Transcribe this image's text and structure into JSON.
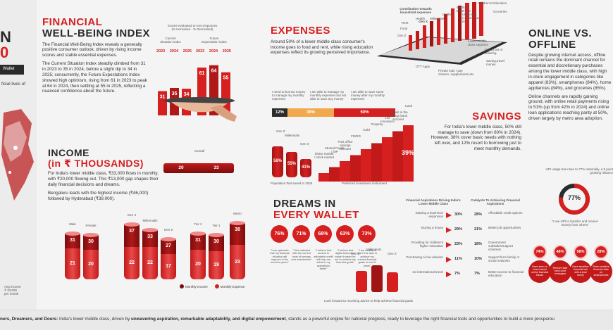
{
  "left_cut": {
    "title_fragment_1": "N",
    "title_fragment_2": "0",
    "wallet": "Wallet",
    "text_fragment": "ficial lives of",
    "avg_note": "Avg Income\n₹ 33,000\nper month"
  },
  "wellbeing": {
    "title_line1": "FINANCIAL",
    "title_line2": "WELL-BEING INDEX",
    "para1": "The Financial Well-Being Index reveals a generally positive consumer outlook, driven by rising income scores and stable essential expenses.",
    "para2": "The Current Situation Index steadily climbed from 31 in 2023 to 35 in 2024, before a slight dip to 34 in 2025; concurrently, the Future Expectations Index showed high optimism, rising from 61 in 2023 to peak at 64 in 2024, then settling at 55 in 2025, reflecting a nuanced confidence about the future.",
    "chart_note": "Scores evaluated on net responses\n(% Increased - % Decreased)",
    "current_label": "Current\nSituation index",
    "future_label": "Future\nExpectation index",
    "years": [
      "2023",
      "2024",
      "2025"
    ]
  },
  "income": {
    "title_line1": "INCOME",
    "title_line2": "(in ₹ THOUSANDS)",
    "para1": "For India's lower middle class, ₹33,000 flows in monthly, with ₹20,000 flowing out. This ₹13,000 gap shapes their daily financial decisions and dreams.",
    "para2": "Bengaluru leads with the highest income (₹46,000) followed by Hyderabad (₹39,000).",
    "overall_label": "Overall",
    "overall_income": "33",
    "overall_expense": "20",
    "legend_income": "Monthly Income",
    "legend_expense": "Monthly Expense"
  },
  "expenses": {
    "title": "EXPENSES",
    "para": "Around 50% of a lower middle class consumer's income goes to food and rent, while rising education expenses reflect its growing perceived importance.",
    "top_note": "Contribution towards\nhousehold expenses",
    "labels": [
      "Food",
      "Rent",
      "Health",
      "Medical\nExpenses",
      "Clothes",
      "Utility Bills\n(cooking fuel,\netc.)",
      "Children's Education",
      "Groceries",
      "Lower middle\nclass segment",
      "Eating out or\nordering",
      "Saving,travel\nmoney",
      "Private loan / pay\nclasses, supplements etc.",
      "OTT Apps",
      "Gen X",
      "Millennials",
      "Gen Z"
    ]
  },
  "savings_survey": {
    "q1": "I need to borrow money to manage my monthly expenses",
    "q2": "I am able to manage my monthly expenses but not able to save any money",
    "q3": "I am able to save some money after my monthly expenses",
    "p1": "12%",
    "p2": "38%",
    "p3": "50%"
  },
  "savings": {
    "title": "SAVINGS",
    "para": "For India's lower middle class, 50% still manage to save (down from 60% in 2024). However, 38% cover basic needs with nothing left over, and 12% resort to borrowing just to meet monthly demands.",
    "pop_note": "Population that saved in 2025",
    "instr_note": "Preferred investment instrument",
    "gen_values": [
      "56%",
      "55%",
      "41%"
    ],
    "stair_labels": [
      "Share market / stock market",
      "Mutual Funds / SIP",
      "Post office savings account",
      "FD/RD",
      "Gold",
      "Property",
      "Life Insurance",
      "Deposit in the savings bank account",
      "Cash"
    ],
    "top_stair": "39%"
  },
  "online": {
    "title_line1": "ONLINE VS.",
    "title_line2": "OFFLINE",
    "para1": "Despite growing internet access, offline retail remains the dominant channel for essential and discretionary purchases among the lower middle class, with high in-store engagement in categories like apparel (83%), smartphones (84%), home appliances (84%), and groceries (85%).",
    "para2": "Online channels are rapidly gaining ground, with online retail payments rising to 51% (up from 42% in 2024) and online loan applications reaching parity at 50%, driven largely by metro area adoption.",
    "upi_note": "UPI usage has risen to 77% nationally, a 5 point growing reliance",
    "donut": "77%",
    "donut_caption": "\"I use UPI to transfer and receive money from others\"",
    "circles": [
      "74%",
      "48%",
      "58%",
      "28%"
    ],
    "circle_texts": [
      "Have seen or heard about online financial frauds",
      "Receive fake bank code messages",
      "Have sensitive financial info with a trust family",
      "Store sensitive financial data on smartphones"
    ]
  },
  "dreams": {
    "title_line1": "DREAMS IN",
    "title_line2": "EVERY WALLET",
    "values": [
      "76%",
      "71%",
      "68%",
      "63%",
      "73%"
    ],
    "quotes": [
      "\"I am optimistic that my financial situation will improve in the next few years\"",
      "\"I feel satisfied with the current level of savings and investments\"",
      "\"I believe that access to affordable credit will help me achieve my aspirations faster\"",
      "\"I believe that digital tools have made it easier for me to achieve my financial goals\"",
      "\"I am confident that I'll be able to achieve my current financial goals in next 5 years\""
    ],
    "footer_note": "Look forward to receiving advice to help achieve financial goals",
    "gen_labels": [
      "Gen Z",
      "Millennials",
      "Gen X"
    ],
    "aspirations_title": "Financial Aspirations Driving India's Lower Middle Class",
    "catalysts_title": "Catalysts To Achieving Financial Aspirations",
    "aspirations": [
      {
        "label": "Starting a business/ expansion",
        "pct": "30%"
      },
      {
        "label": "Buying a house",
        "pct": "29%"
      },
      {
        "label": "Providing for children's higher education",
        "pct": "23%"
      },
      {
        "label": "Purchasing a four-wheeler",
        "pct": "11%"
      },
      {
        "label": "1st international travel",
        "pct": "7%"
      }
    ],
    "catalysts": [
      {
        "label": "Affordable credit options",
        "pct": "28%"
      },
      {
        "label": "Better job opportunities",
        "pct": "21%"
      },
      {
        "label": "Government subsidies/support schemes",
        "pct": "18%"
      },
      {
        "label": "Support from family or social networks",
        "pct": "10%"
      },
      {
        "label": "Better access to financial education",
        "pct": "7%"
      }
    ]
  },
  "footer": {
    "text_start": "ners, Dreamers, and Doers: ",
    "text_mid": "India's lower middle class, driven by ",
    "text_bold": "unwavering aspiration, remarkable adaptability, and digital empowerment",
    "text_end": ", stands as a powerful engine for national progress, ready to leverage the right financial tools and opportunities to build a more prosperou"
  },
  "income_chart": {
    "type": "bar",
    "categories": [
      "Male",
      "Female",
      "Gen X",
      "Millennials",
      "Gen Z",
      "Tier 2",
      "Tier 1",
      "Metro"
    ],
    "series": [
      {
        "name": "Monthly Income",
        "values": [
          31,
          30,
          37,
          33,
          27,
          31,
          30,
          38
        ]
      },
      {
        "name": "Monthly Expense",
        "values": [
          21,
          20,
          22,
          22,
          17,
          20,
          19,
          23
        ]
      }
    ]
  },
  "chart_data": {
    "type": "bar",
    "categories": [
      "2023",
      "2024",
      "2025"
    ],
    "series": [
      {
        "name": "Current Situation index",
        "values": [
          31,
          35,
          34
        ]
      },
      {
        "name": "Future Expectation index",
        "values": [
          61,
          64,
          55
        ]
      }
    ],
    "ylabel": ""
  }
}
